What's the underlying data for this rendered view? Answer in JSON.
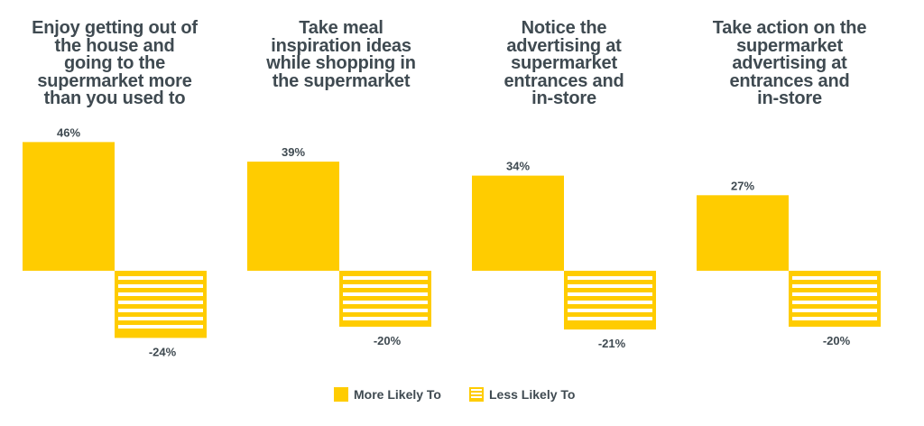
{
  "colors": {
    "accent": "#ffcc00",
    "text": "#3f4a51",
    "background": "#ffffff"
  },
  "legend": {
    "more_label": "More Likely To",
    "less_label": "Less Likely To"
  },
  "chart_data": {
    "type": "bar",
    "categories": [
      "Enjoy getting out of the house and going to the supermarket more than you used to",
      "Take meal inspiration ideas while shopping in the supermarket",
      "Notice the advertising at supermarket entrances and in-store",
      "Take action on the supermarket advertising at entrances and in-store"
    ],
    "series": [
      {
        "name": "More Likely To",
        "values": [
          46,
          39,
          34,
          27
        ],
        "value_labels": [
          "46%",
          "39%",
          "34%",
          "27%"
        ]
      },
      {
        "name": "Less Likely To",
        "values": [
          -24,
          -20,
          -21,
          -20
        ],
        "value_labels": [
          "-24%",
          "-20%",
          "-21%",
          "-20%"
        ]
      }
    ],
    "legend_position": "bottom-center",
    "grid": false
  },
  "panels": [
    {
      "title_lines": [
        "Enjoy getting out of",
        "the house and",
        "going to the",
        "supermarket more",
        "than you used to"
      ]
    },
    {
      "title_lines": [
        "Take meal",
        "inspiration ideas",
        "while shopping in",
        "the supermarket"
      ]
    },
    {
      "title_lines": [
        "Notice the",
        "advertising at",
        "supermarket",
        "entrances and",
        "in-store"
      ]
    },
    {
      "title_lines": [
        "Take action on the",
        "supermarket",
        "advertising at",
        "entrances and",
        "in-store"
      ]
    }
  ]
}
